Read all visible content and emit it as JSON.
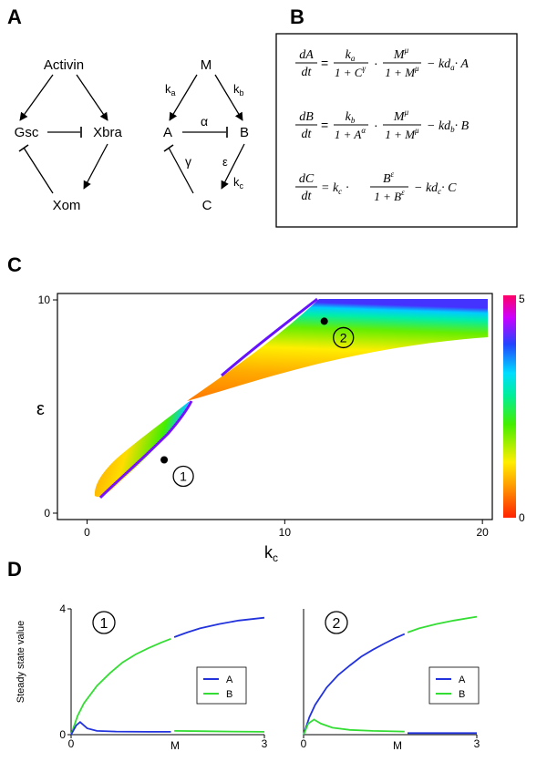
{
  "panels": {
    "a": "A",
    "b": "B",
    "c": "C",
    "d": "D"
  },
  "net1": {
    "top": "Activin",
    "left": "Gsc",
    "right": "Xbra",
    "bottom": "Xom"
  },
  "net2": {
    "top": "M",
    "left": "A",
    "right": "B",
    "bottom": "C",
    "ka": "k",
    "ka_sub": "a",
    "kb": "k",
    "kb_sub": "b",
    "kc": "k",
    "kc_sub": "c",
    "alpha": "α",
    "gamma": "γ",
    "eps": "ε"
  },
  "equations": {
    "eq1": {
      "lhs_num": "dA",
      "lhs_den": "dt",
      "k_num": "k",
      "k_sub": "a",
      "k_den_pre": "1 + C",
      "k_den_exp": "γ",
      "m_num": "M",
      "m_exp": "μ",
      "m_den_pre": "1 + M",
      "m_den_exp": "μ",
      "tail": "− kd",
      "tail_sub": "a",
      "tail_var": "· A"
    },
    "eq2": {
      "lhs_num": "dB",
      "lhs_den": "dt",
      "k_num": "k",
      "k_sub": "b",
      "k_den_pre": "1 + A",
      "k_den_exp": "α",
      "m_num": "M",
      "m_exp": "μ",
      "m_den_pre": "1 + M",
      "m_den_exp": "μ",
      "tail": "− kd",
      "tail_sub": "b",
      "tail_var": "· B"
    },
    "eq3": {
      "lhs_num": "dC",
      "lhs_den": "dt",
      "pre": "= k",
      "pre_sub": "c",
      "pre_dot": "·",
      "b_num": "B",
      "b_exp": "ε",
      "b_den_pre": "1 + B",
      "b_den_exp": "ε",
      "tail": "− kd",
      "tail_sub": "c",
      "tail_var": "· C"
    },
    "eq_sign": "=",
    "dot": "·"
  },
  "heatmap": {
    "xlabel": "k",
    "xlabel_sub": "c",
    "ylabel": "ε",
    "xticks": [
      "0",
      "10",
      "20"
    ],
    "yticks": [
      "0",
      "10"
    ],
    "colorbar_ticks": [
      "5",
      "0"
    ],
    "markers": [
      {
        "label": "1",
        "kc": 3.9,
        "eps": 2.5
      },
      {
        "label": "2",
        "kc": 12.0,
        "eps": 9.0
      }
    ]
  },
  "chart_data": [
    {
      "type": "line",
      "panel": "D1",
      "label": "1",
      "ylabel": "Steady state value",
      "xlabel": "M",
      "xlim": [
        0,
        3
      ],
      "ylim": [
        0,
        4
      ],
      "xticks": [
        "0",
        "3"
      ],
      "yticks": [
        "0",
        "4"
      ],
      "legend": [
        "A",
        "B"
      ],
      "legend_colors": [
        "#2233dd",
        "#33dd33"
      ],
      "segments": [
        {
          "color": "#33dd33",
          "points": [
            [
              0,
              0
            ],
            [
              0.1,
              0.6
            ],
            [
              0.2,
              1.0
            ],
            [
              0.4,
              1.55
            ],
            [
              0.6,
              1.95
            ],
            [
              0.8,
              2.3
            ],
            [
              1.0,
              2.55
            ],
            [
              1.2,
              2.75
            ],
            [
              1.4,
              2.93
            ],
            [
              1.55,
              3.05
            ]
          ]
        },
        {
          "color": "#2233dd",
          "points": [
            [
              0,
              0
            ],
            [
              0.08,
              0.3
            ],
            [
              0.14,
              0.4
            ],
            [
              0.25,
              0.2
            ],
            [
              0.4,
              0.12
            ],
            [
              0.7,
              0.1
            ],
            [
              1.2,
              0.09
            ],
            [
              1.55,
              0.09
            ]
          ]
        },
        {
          "color": "#2233dd",
          "points": [
            [
              1.6,
              3.1
            ],
            [
              1.8,
              3.25
            ],
            [
              2.0,
              3.38
            ],
            [
              2.3,
              3.52
            ],
            [
              2.6,
              3.63
            ],
            [
              3.0,
              3.72
            ]
          ]
        },
        {
          "color": "#33dd33",
          "points": [
            [
              1.6,
              0.12
            ],
            [
              2.0,
              0.11
            ],
            [
              2.5,
              0.1
            ],
            [
              3.0,
              0.09
            ]
          ]
        }
      ]
    },
    {
      "type": "line",
      "panel": "D2",
      "label": "2",
      "ylabel": "",
      "xlabel": "M",
      "xlim": [
        0,
        3
      ],
      "ylim": [
        0,
        4
      ],
      "xticks": [
        "0",
        "3"
      ],
      "yticks": [],
      "legend": [
        "A",
        "B"
      ],
      "legend_colors": [
        "#2233dd",
        "#33dd33"
      ],
      "segments": [
        {
          "color": "#2233dd",
          "points": [
            [
              0,
              0
            ],
            [
              0.1,
              0.55
            ],
            [
              0.2,
              0.95
            ],
            [
              0.4,
              1.5
            ],
            [
              0.6,
              1.9
            ],
            [
              0.8,
              2.2
            ],
            [
              1.0,
              2.48
            ],
            [
              1.2,
              2.7
            ],
            [
              1.4,
              2.9
            ],
            [
              1.6,
              3.08
            ],
            [
              1.75,
              3.2
            ]
          ]
        },
        {
          "color": "#33dd33",
          "points": [
            [
              0,
              0
            ],
            [
              0.08,
              0.35
            ],
            [
              0.18,
              0.48
            ],
            [
              0.3,
              0.35
            ],
            [
              0.5,
              0.22
            ],
            [
              0.8,
              0.15
            ],
            [
              1.2,
              0.12
            ],
            [
              1.75,
              0.1
            ]
          ]
        },
        {
          "color": "#33dd33",
          "points": [
            [
              1.8,
              3.25
            ],
            [
              2.0,
              3.38
            ],
            [
              2.3,
              3.52
            ],
            [
              2.6,
              3.63
            ],
            [
              3.0,
              3.75
            ]
          ]
        },
        {
          "color": "#2233dd",
          "points": [
            [
              1.8,
              0.05
            ],
            [
              2.2,
              0.05
            ],
            [
              2.6,
              0.05
            ],
            [
              3.0,
              0.05
            ]
          ]
        }
      ]
    }
  ]
}
